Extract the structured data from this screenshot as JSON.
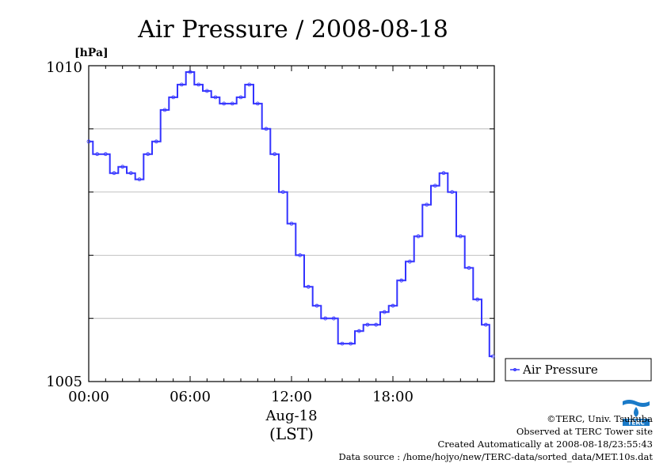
{
  "chart_data": {
    "type": "line",
    "title": "Air Pressure / 2008-08-18",
    "ylabel": "[hPa]",
    "xlabel": "Aug-18",
    "xunit": "(LST)",
    "ylim": [
      1005,
      1010
    ],
    "xlim": [
      "00:00",
      "24:00"
    ],
    "y_tick_labels": [
      "1010",
      "1005"
    ],
    "y_gridlines": [
      1006,
      1007,
      1008,
      1009
    ],
    "x_tick_labels": [
      "00:00",
      "06:00",
      "12:00",
      "18:00"
    ],
    "grid": "horizontal",
    "legend_position": "bottom-right",
    "series": [
      {
        "name": "Air Pressure",
        "color": "#3333ff",
        "x": [
          "00:00",
          "00:30",
          "01:00",
          "01:30",
          "02:00",
          "02:30",
          "03:00",
          "03:30",
          "04:00",
          "04:30",
          "05:00",
          "05:30",
          "06:00",
          "06:30",
          "07:00",
          "07:30",
          "08:00",
          "08:30",
          "09:00",
          "09:30",
          "10:00",
          "10:30",
          "11:00",
          "11:30",
          "12:00",
          "12:30",
          "13:00",
          "13:30",
          "14:00",
          "14:30",
          "15:00",
          "15:30",
          "16:00",
          "16:30",
          "17:00",
          "17:30",
          "18:00",
          "18:30",
          "19:00",
          "19:30",
          "20:00",
          "20:30",
          "21:00",
          "21:30",
          "22:00",
          "22:30",
          "23:00",
          "23:30",
          "23:55"
        ],
        "values": [
          1008.8,
          1008.6,
          1008.6,
          1008.3,
          1008.4,
          1008.3,
          1008.2,
          1008.6,
          1008.8,
          1009.3,
          1009.5,
          1009.7,
          1009.9,
          1009.7,
          1009.6,
          1009.5,
          1009.4,
          1009.4,
          1009.5,
          1009.7,
          1009.4,
          1009.0,
          1008.6,
          1008.0,
          1007.5,
          1007.0,
          1006.5,
          1006.2,
          1006.0,
          1006.0,
          1005.6,
          1005.6,
          1005.8,
          1005.9,
          1005.9,
          1006.1,
          1006.2,
          1006.6,
          1006.9,
          1007.3,
          1007.8,
          1008.1,
          1008.3,
          1008.0,
          1007.3,
          1006.8,
          1006.3,
          1005.9,
          1005.4
        ]
      }
    ]
  },
  "footer": {
    "copyright": "©TERC, Univ. Tsukuba",
    "observed": "Observed at TERC Tower site",
    "created": "Created Automatically at 2008-08-18/23:55:43",
    "source": "Data source : /home/hojyo/new/TERC-data/sorted_data/MET.10s.dat"
  },
  "logo": {
    "text": "TERC",
    "icon": "terc-logo-icon",
    "color": "#1a7ac8"
  }
}
